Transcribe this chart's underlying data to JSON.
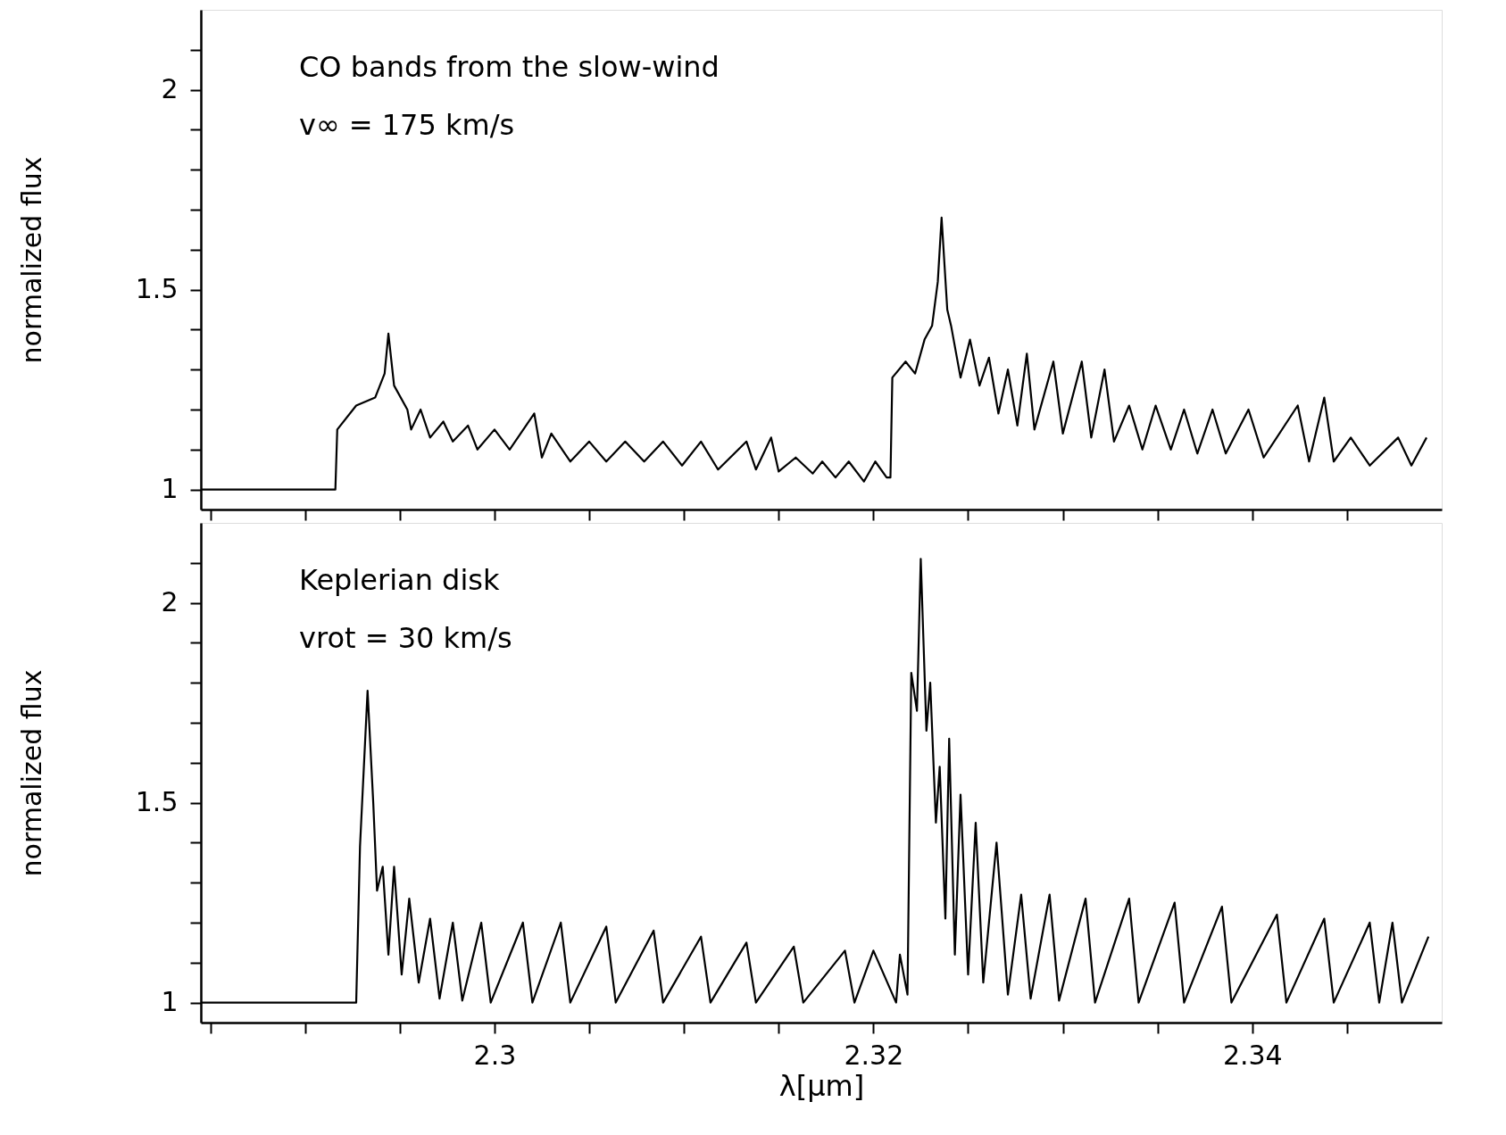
{
  "chart_data": [
    {
      "type": "line",
      "ylabel": "normalized flux",
      "annotations": [
        "CO bands from the slow-wind",
        "v∞ = 175 km/s"
      ],
      "xlim": [
        2.2845,
        2.35
      ],
      "ylim": [
        0.95,
        2.2
      ],
      "xticks": [
        {
          "value": 2.285,
          "label": null
        },
        {
          "value": 2.29,
          "label": null
        },
        {
          "value": 2.295,
          "label": null
        },
        {
          "value": 2.3,
          "label": null
        },
        {
          "value": 2.305,
          "label": null
        },
        {
          "value": 2.31,
          "label": null
        },
        {
          "value": 2.315,
          "label": null
        },
        {
          "value": 2.32,
          "label": null
        },
        {
          "value": 2.325,
          "label": null
        },
        {
          "value": 2.33,
          "label": null
        },
        {
          "value": 2.335,
          "label": null
        },
        {
          "value": 2.34,
          "label": null
        },
        {
          "value": 2.345,
          "label": null
        }
      ],
      "yticks": [
        1,
        {
          "value": 1.1,
          "label": null
        },
        {
          "value": 1.2,
          "label": null
        },
        {
          "value": 1.3,
          "label": null
        },
        {
          "value": 1.4,
          "label": null
        },
        1.5,
        {
          "value": 1.6,
          "label": null
        },
        {
          "value": 1.7,
          "label": null
        },
        {
          "value": 1.8,
          "label": null
        },
        {
          "value": 1.9,
          "label": null
        },
        2,
        {
          "value": 2.1,
          "label": null
        }
      ],
      "tick_labels": "y",
      "grid": false,
      "marker": "none",
      "line_style": "solid",
      "series": [
        {
          "color": "#000000",
          "x": [
            2.2845,
            2.2916,
            2.2917,
            2.2927,
            2.2937,
            2.2942,
            2.2944,
            2.2947,
            2.2954,
            2.2956,
            2.2961,
            2.2966,
            2.2973,
            2.2978,
            2.2986,
            2.2991,
            2.3,
            2.3008,
            2.3021,
            2.3025,
            2.303,
            2.304,
            2.305,
            2.3059,
            2.3069,
            2.3079,
            2.3089,
            2.3099,
            2.3109,
            2.3118,
            2.3133,
            2.3138,
            2.3146,
            2.315,
            2.3159,
            2.3168,
            2.3173,
            2.318,
            2.3187,
            2.3195,
            2.3201,
            2.3207,
            2.3209,
            2.321,
            2.3217,
            2.3222,
            2.3227,
            2.3231,
            2.3234,
            2.3236,
            2.3239,
            2.3241,
            2.3246,
            2.3251,
            2.3256,
            2.3261,
            2.3266,
            2.3271,
            2.3276,
            2.3281,
            2.3285,
            2.3295,
            2.33,
            2.331,
            2.3315,
            2.3322,
            2.3327,
            2.3335,
            2.3342,
            2.3349,
            2.3357,
            2.3364,
            2.3371,
            2.3379,
            2.3386,
            2.3398,
            2.3406,
            2.3424,
            2.343,
            2.3438,
            2.3443,
            2.3452,
            2.3462,
            2.3477,
            2.3484,
            2.3492
          ],
          "values": [
            1.0,
            1.0,
            1.15,
            1.21,
            1.23,
            1.29,
            1.39,
            1.26,
            1.2,
            1.15,
            1.2,
            1.13,
            1.17,
            1.12,
            1.16,
            1.1,
            1.15,
            1.1,
            1.19,
            1.08,
            1.14,
            1.07,
            1.12,
            1.07,
            1.12,
            1.07,
            1.12,
            1.06,
            1.12,
            1.05,
            1.12,
            1.05,
            1.13,
            1.045,
            1.08,
            1.04,
            1.07,
            1.03,
            1.07,
            1.02,
            1.07,
            1.03,
            1.03,
            1.28,
            1.32,
            1.29,
            1.375,
            1.41,
            1.52,
            1.68,
            1.45,
            1.41,
            1.28,
            1.375,
            1.26,
            1.33,
            1.19,
            1.3,
            1.16,
            1.34,
            1.15,
            1.32,
            1.14,
            1.32,
            1.13,
            1.3,
            1.12,
            1.21,
            1.1,
            1.21,
            1.1,
            1.2,
            1.09,
            1.2,
            1.09,
            1.2,
            1.08,
            1.21,
            1.07,
            1.23,
            1.07,
            1.13,
            1.06,
            1.13,
            1.06,
            1.13
          ]
        }
      ]
    },
    {
      "type": "line",
      "ylabel": "normalized flux",
      "xlabel": "λ[μm]",
      "annotations": [
        "Keplerian disk",
        "vrot = 30 km/s"
      ],
      "xlim": [
        2.2845,
        2.35
      ],
      "ylim": [
        0.95,
        2.2
      ],
      "xticks": [
        {
          "value": 2.285,
          "label": null
        },
        {
          "value": 2.29,
          "label": null
        },
        {
          "value": 2.295,
          "label": null
        },
        {
          "value": 2.3,
          "label": "2.3"
        },
        {
          "value": 2.305,
          "label": null
        },
        {
          "value": 2.31,
          "label": null
        },
        {
          "value": 2.315,
          "label": null
        },
        {
          "value": 2.32,
          "label": "2.32"
        },
        {
          "value": 2.325,
          "label": null
        },
        {
          "value": 2.33,
          "label": null
        },
        {
          "value": 2.335,
          "label": null
        },
        {
          "value": 2.34,
          "label": "2.34"
        },
        {
          "value": 2.345,
          "label": null
        }
      ],
      "yticks": [
        1,
        {
          "value": 1.1,
          "label": null
        },
        {
          "value": 1.2,
          "label": null
        },
        {
          "value": 1.3,
          "label": null
        },
        {
          "value": 1.4,
          "label": null
        },
        1.5,
        {
          "value": 1.6,
          "label": null
        },
        {
          "value": 1.7,
          "label": null
        },
        {
          "value": 1.8,
          "label": null
        },
        {
          "value": 1.9,
          "label": null
        },
        2,
        {
          "value": 2.1,
          "label": null
        }
      ],
      "grid": false,
      "marker": "none",
      "line_style": "solid",
      "series": [
        {
          "color": "#000000",
          "x": [
            2.2845,
            2.2927,
            2.2929,
            2.2933,
            2.2936,
            2.2938,
            2.2941,
            2.2944,
            2.2947,
            2.2951,
            2.2955,
            2.296,
            2.2966,
            2.2971,
            2.2978,
            2.2983,
            2.2993,
            2.2998,
            2.3015,
            2.302,
            2.3035,
            2.304,
            2.3059,
            2.3064,
            2.3084,
            2.3089,
            2.3109,
            2.3114,
            2.3133,
            2.3138,
            2.3158,
            2.3163,
            2.3185,
            2.319,
            2.32,
            2.3212,
            2.3214,
            2.3218,
            2.322,
            2.3223,
            2.3225,
            2.3228,
            2.323,
            2.3233,
            2.3235,
            2.3238,
            2.324,
            2.3243,
            2.3246,
            2.325,
            2.3254,
            2.3258,
            2.3265,
            2.3271,
            2.3278,
            2.3283,
            2.3293,
            2.3298,
            2.3312,
            2.3317,
            2.3335,
            2.334,
            2.3359,
            2.3364,
            2.3384,
            2.3389,
            2.3413,
            2.3418,
            2.3438,
            2.3443,
            2.3462,
            2.3467,
            2.3474,
            2.3479,
            2.3493
          ],
          "values": [
            1.0,
            1.0,
            1.39,
            1.78,
            1.5,
            1.28,
            1.34,
            1.12,
            1.34,
            1.07,
            1.26,
            1.05,
            1.21,
            1.01,
            1.2,
            1.005,
            1.2,
            1.0,
            1.2,
            1.0,
            1.2,
            1.0,
            1.19,
            1.0,
            1.18,
            1.0,
            1.165,
            1.0,
            1.15,
            1.0,
            1.14,
            1.0,
            1.13,
            1.0,
            1.13,
            1.0,
            1.12,
            1.02,
            1.825,
            1.73,
            2.11,
            1.68,
            1.8,
            1.45,
            1.59,
            1.21,
            1.66,
            1.12,
            1.52,
            1.07,
            1.45,
            1.05,
            1.4,
            1.02,
            1.27,
            1.01,
            1.27,
            1.005,
            1.26,
            1.0,
            1.26,
            1.0,
            1.25,
            1.0,
            1.24,
            1.0,
            1.22,
            1.0,
            1.21,
            1.0,
            1.2,
            1.0,
            1.2,
            1.0,
            1.165
          ]
        }
      ]
    }
  ]
}
